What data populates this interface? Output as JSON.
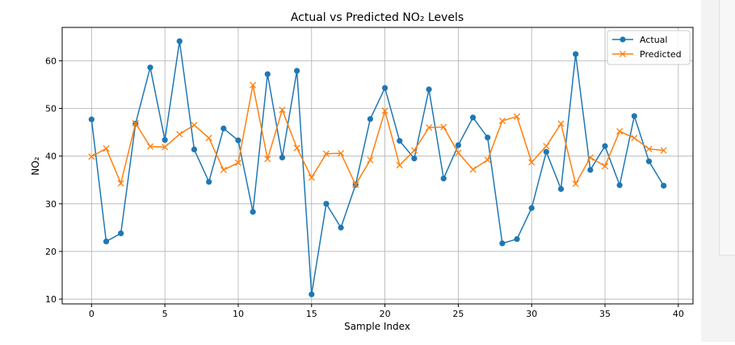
{
  "chart_data": {
    "type": "line",
    "title": "Actual vs Predicted NO₂ Levels",
    "xlabel": "Sample Index",
    "ylabel": "NO₂",
    "xlim": [
      -2,
      41
    ],
    "ylim": [
      9,
      67
    ],
    "xticks": [
      0,
      5,
      10,
      15,
      20,
      25,
      30,
      35,
      40
    ],
    "yticks": [
      10,
      20,
      30,
      40,
      50,
      60
    ],
    "grid": true,
    "legend_position": "top-right",
    "x": [
      0,
      1,
      2,
      3,
      4,
      5,
      6,
      7,
      8,
      9,
      10,
      11,
      12,
      13,
      14,
      15,
      16,
      17,
      18,
      19,
      20,
      21,
      22,
      23,
      24,
      25,
      26,
      27,
      28,
      29,
      30,
      31,
      32,
      33,
      34,
      35,
      36,
      37,
      38,
      39
    ],
    "series": [
      {
        "name": "Actual",
        "color": "#1f77b4",
        "marker": "circle",
        "values": [
          47.7,
          22.1,
          23.8,
          46.8,
          58.6,
          43.4,
          64.1,
          41.4,
          34.6,
          45.8,
          43.3,
          28.3,
          57.2,
          39.7,
          57.9,
          11.0,
          30.0,
          25.0,
          34.0,
          47.8,
          54.3,
          43.2,
          39.5,
          54.0,
          35.3,
          42.3,
          48.1,
          43.9,
          21.7,
          22.6,
          29.1,
          40.9,
          33.1,
          61.4,
          37.1,
          42.1,
          33.9,
          48.4,
          38.9,
          33.8
        ]
      },
      {
        "name": "Predicted",
        "color": "#ff7f0e",
        "marker": "x",
        "values": [
          39.9,
          41.6,
          34.3,
          46.9,
          42.0,
          41.9,
          44.6,
          46.5,
          43.8,
          37.1,
          38.6,
          54.9,
          39.4,
          49.7,
          41.7,
          35.5,
          40.5,
          40.6,
          34.0,
          39.2,
          49.5,
          38.1,
          41.2,
          46.0,
          46.1,
          40.7,
          37.2,
          39.2,
          47.4,
          48.3,
          38.7,
          42.1,
          46.8,
          34.2,
          39.7,
          37.9,
          45.2,
          43.8,
          41.5,
          41.2
        ]
      }
    ]
  }
}
